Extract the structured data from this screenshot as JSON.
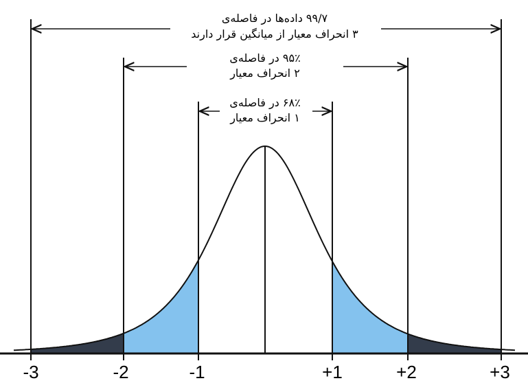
{
  "annotations": [
    {
      "lines": [
        "۹۹/۷ داده‌ها در فاصله‌ی",
        "۳ انحراف معیار از میانگین قرار دارند"
      ]
    },
    {
      "lines": [
        "۹۵٪ در فاصله‌ی",
        "۲ انحراف معیار"
      ]
    },
    {
      "lines": [
        "۶۸٪ در فاصله‌ی",
        "۱ انحراف معیار"
      ]
    }
  ],
  "axis_labels": [
    "-3",
    "-2",
    "-1",
    "+1",
    "+2",
    "+3"
  ]
}
